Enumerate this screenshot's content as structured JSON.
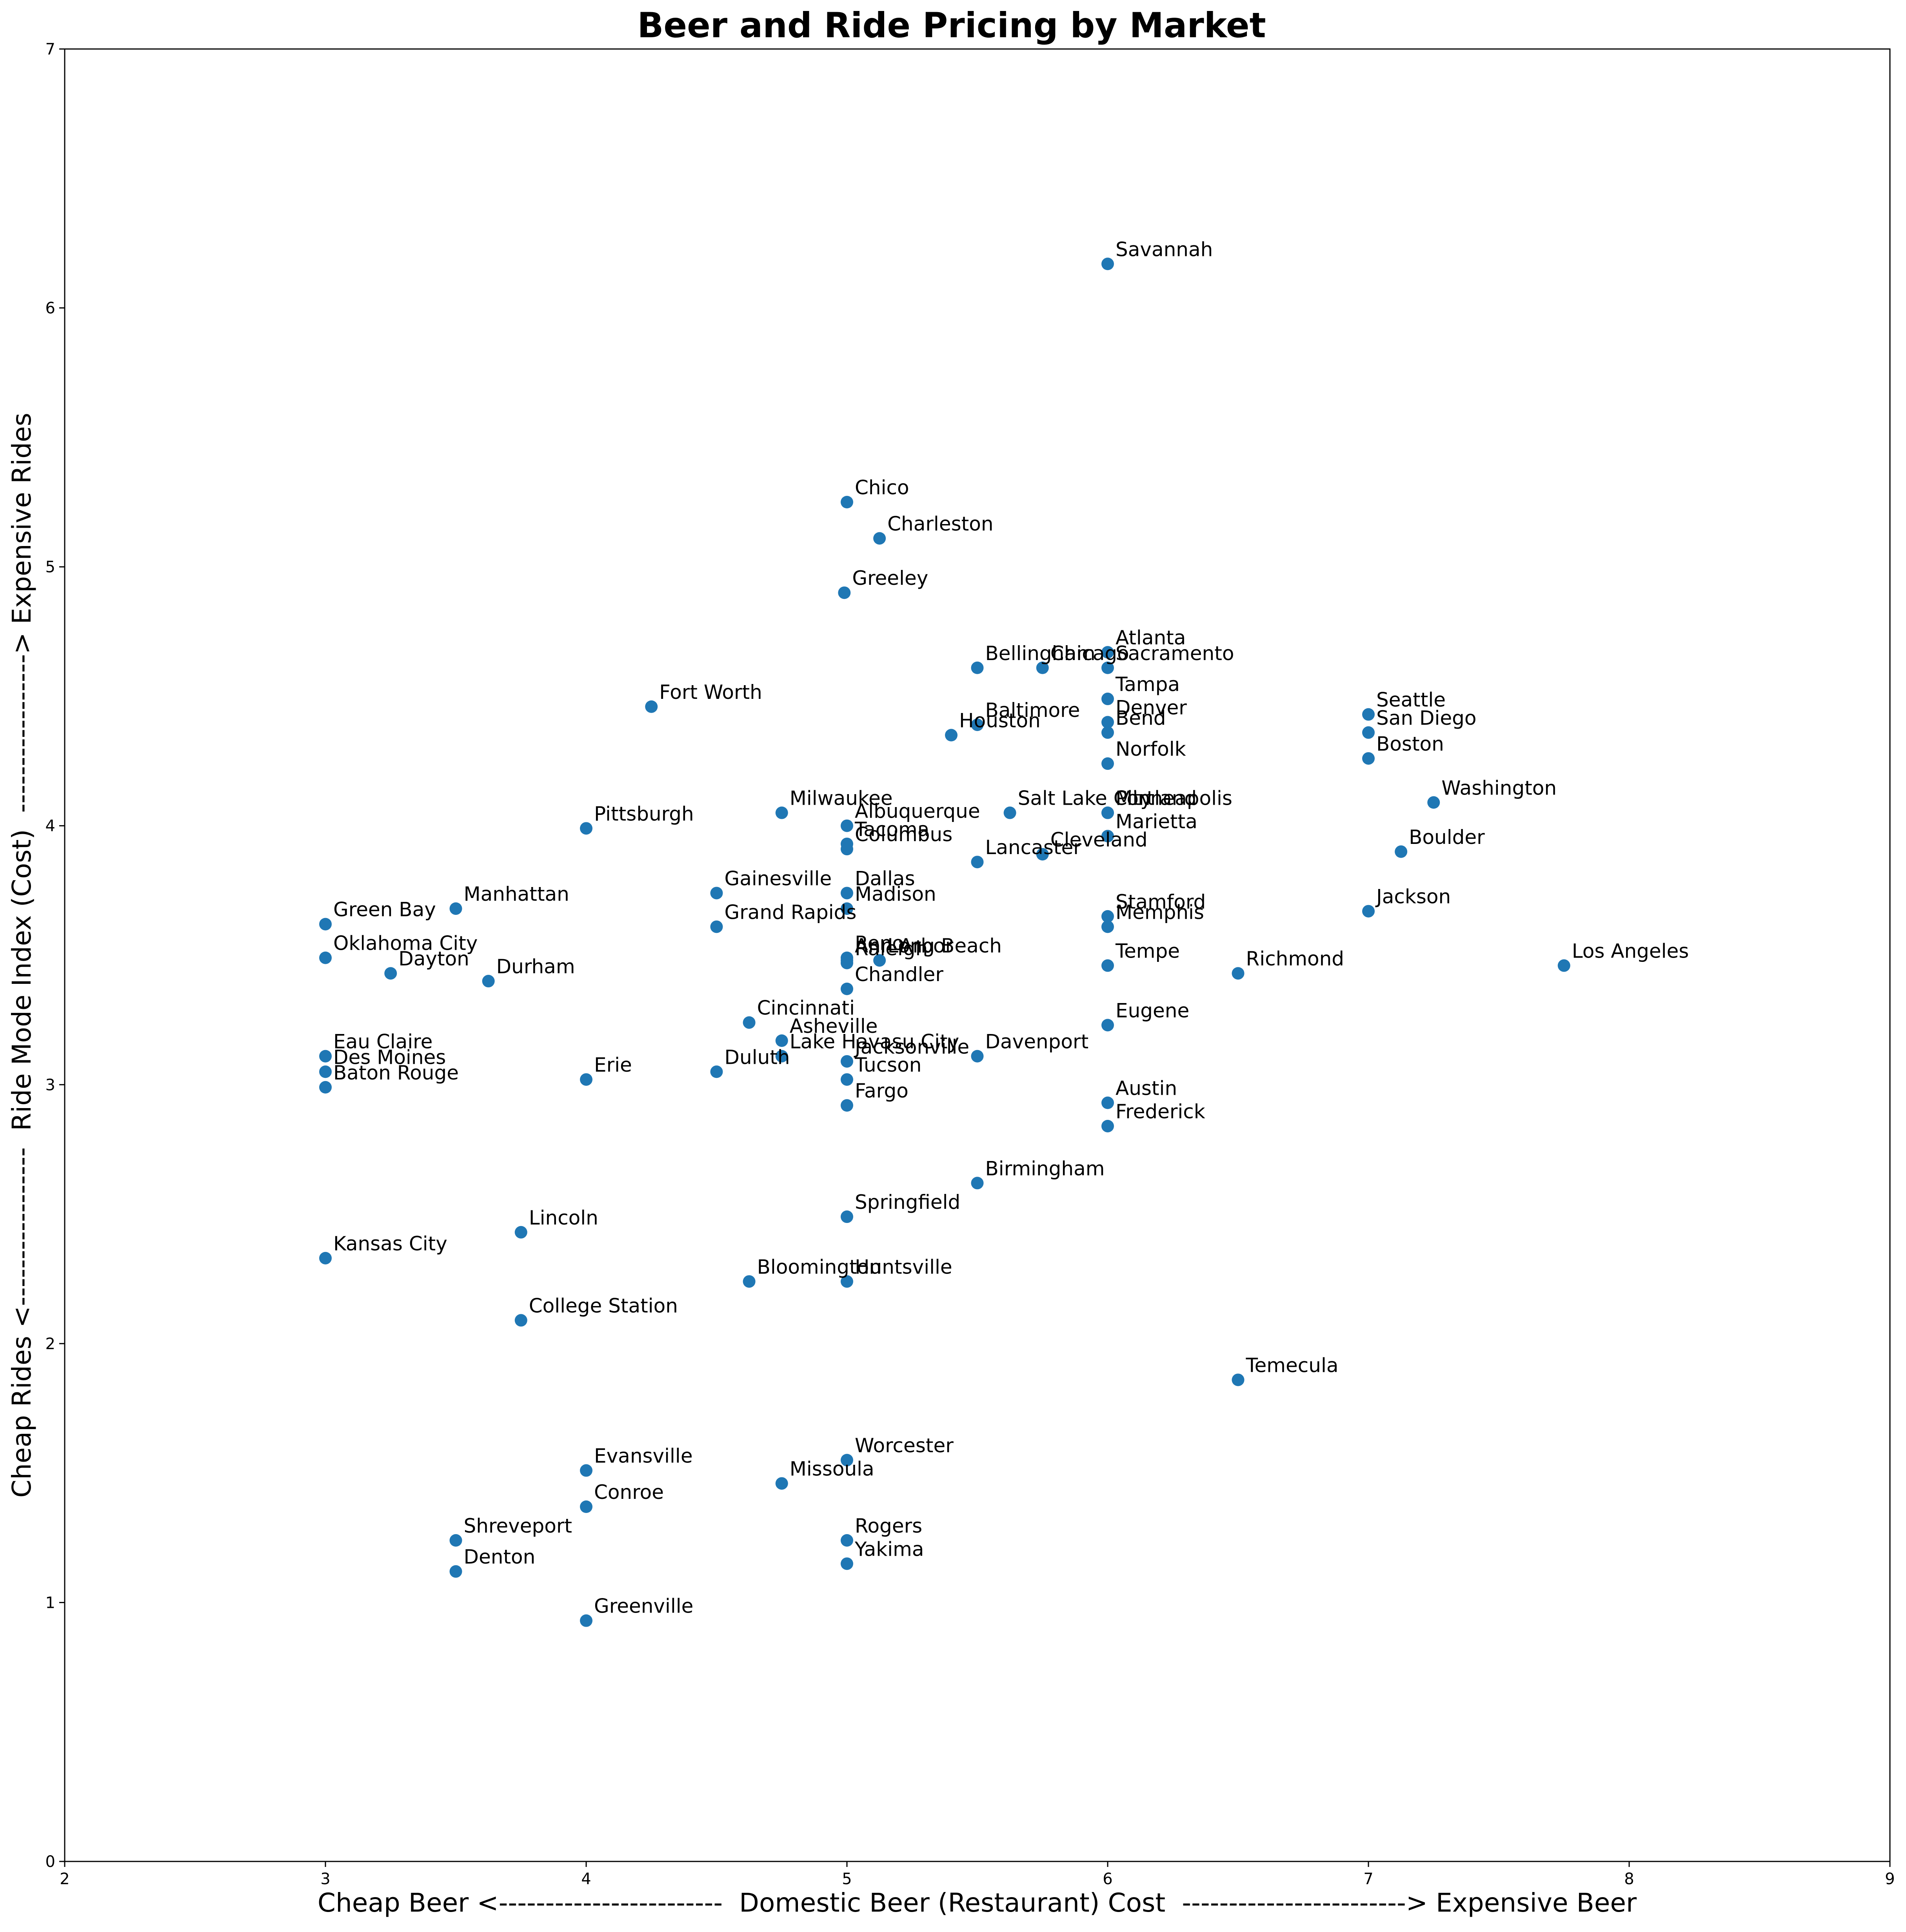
{
  "chart_data": {
    "type": "scatter",
    "title": "Beer and Ride Pricing by Market",
    "xlabel": "Cheap Beer <------------------------  Domestic Beer (Restaurant) Cost  ------------------------> Expensive Beer",
    "ylabel": "Cheap Rides <-----------------  Ride Mode Index (Cost)  -----------------> Expensive Rides",
    "xlim": [
      2,
      9
    ],
    "ylim": [
      0,
      7
    ],
    "xticks": [
      "2",
      "3",
      "4",
      "5",
      "6",
      "7",
      "8",
      "9"
    ],
    "yticks": [
      "0",
      "1",
      "2",
      "3",
      "4",
      "5",
      "6",
      "7"
    ],
    "grid": false,
    "color": "#1f77b4",
    "points": [
      {
        "label": "Savannah",
        "x": 6.0,
        "y": 6.17
      },
      {
        "label": "Chico",
        "x": 5.0,
        "y": 5.25
      },
      {
        "label": "Charleston",
        "x": 5.125,
        "y": 5.11
      },
      {
        "label": "Greeley",
        "x": 4.99,
        "y": 4.9
      },
      {
        "label": "Atlanta",
        "x": 6.0,
        "y": 4.67
      },
      {
        "label": "Chicago",
        "x": 5.75,
        "y": 4.61
      },
      {
        "label": "Sacramento",
        "x": 6.0,
        "y": 4.61
      },
      {
        "label": "Bellingham",
        "x": 5.5,
        "y": 4.61
      },
      {
        "label": "Tampa",
        "x": 6.0,
        "y": 4.49
      },
      {
        "label": "Fort Worth",
        "x": 4.25,
        "y": 4.46
      },
      {
        "label": "Seattle",
        "x": 7.0,
        "y": 4.43
      },
      {
        "label": "Denver",
        "x": 6.0,
        "y": 4.4
      },
      {
        "label": "Baltimore",
        "x": 5.5,
        "y": 4.39
      },
      {
        "label": "Bend",
        "x": 6.0,
        "y": 4.36
      },
      {
        "label": "San Diego",
        "x": 7.0,
        "y": 4.36
      },
      {
        "label": "Houston",
        "x": 5.4,
        "y": 4.35
      },
      {
        "label": "Boston",
        "x": 7.0,
        "y": 4.26
      },
      {
        "label": "Norfolk",
        "x": 6.0,
        "y": 4.24
      },
      {
        "label": "Washington",
        "x": 7.25,
        "y": 4.09
      },
      {
        "label": "Milwaukee",
        "x": 4.75,
        "y": 4.05
      },
      {
        "label": "Salt Lake City",
        "x": 5.625,
        "y": 4.05
      },
      {
        "label": "Portland",
        "x": 6.0,
        "y": 4.05
      },
      {
        "label": "Minneapolis",
        "x": 6.0,
        "y": 4.05
      },
      {
        "label": "Albuquerque",
        "x": 5.0,
        "y": 4.0
      },
      {
        "label": "Pittsburgh",
        "x": 4.0,
        "y": 3.99
      },
      {
        "label": "Marietta",
        "x": 6.0,
        "y": 3.96
      },
      {
        "label": "Tacoma",
        "x": 5.0,
        "y": 3.93
      },
      {
        "label": "Columbus",
        "x": 5.0,
        "y": 3.91
      },
      {
        "label": "Boulder",
        "x": 7.125,
        "y": 3.9
      },
      {
        "label": "Cleveland",
        "x": 5.75,
        "y": 3.89
      },
      {
        "label": "Lancaster",
        "x": 5.5,
        "y": 3.86
      },
      {
        "label": "Dallas",
        "x": 5.0,
        "y": 3.74
      },
      {
        "label": "Gainesville",
        "x": 4.5,
        "y": 3.74
      },
      {
        "label": "Manhattan",
        "x": 3.5,
        "y": 3.68
      },
      {
        "label": "Madison",
        "x": 5.0,
        "y": 3.68
      },
      {
        "label": "Jackson",
        "x": 7.0,
        "y": 3.67
      },
      {
        "label": "Stamford",
        "x": 6.0,
        "y": 3.65
      },
      {
        "label": "Green Bay",
        "x": 3.0,
        "y": 3.62
      },
      {
        "label": "Grand Rapids",
        "x": 4.5,
        "y": 3.61
      },
      {
        "label": "Memphis",
        "x": 6.0,
        "y": 3.61
      },
      {
        "label": "Oklahoma City",
        "x": 3.0,
        "y": 3.49
      },
      {
        "label": "Reno",
        "x": 5.0,
        "y": 3.49
      },
      {
        "label": "Raleigh",
        "x": 5.0,
        "y": 3.47
      },
      {
        "label": "Ann Arbor",
        "x": 5.0,
        "y": 3.48
      },
      {
        "label": "Long Beach",
        "x": 5.125,
        "y": 3.48
      },
      {
        "label": "Tempe",
        "x": 6.0,
        "y": 3.46
      },
      {
        "label": "Los Angeles",
        "x": 7.75,
        "y": 3.46
      },
      {
        "label": "Dayton",
        "x": 3.25,
        "y": 3.43
      },
      {
        "label": "Richmond",
        "x": 6.5,
        "y": 3.43
      },
      {
        "label": "Durham",
        "x": 3.625,
        "y": 3.4
      },
      {
        "label": "Chandler",
        "x": 5.0,
        "y": 3.37
      },
      {
        "label": "Cincinnati",
        "x": 4.625,
        "y": 3.24
      },
      {
        "label": "Eugene",
        "x": 6.0,
        "y": 3.23
      },
      {
        "label": "Asheville",
        "x": 4.75,
        "y": 3.17
      },
      {
        "label": "Eau Claire",
        "x": 3.0,
        "y": 3.11
      },
      {
        "label": "Lake Havasu City",
        "x": 4.75,
        "y": 3.11
      },
      {
        "label": "Davenport",
        "x": 5.5,
        "y": 3.11
      },
      {
        "label": "Jacksonville",
        "x": 5.0,
        "y": 3.09
      },
      {
        "label": "Des Moines",
        "x": 3.0,
        "y": 3.05
      },
      {
        "label": "Duluth",
        "x": 4.5,
        "y": 3.05
      },
      {
        "label": "Erie",
        "x": 4.0,
        "y": 3.02
      },
      {
        "label": "Tucson",
        "x": 5.0,
        "y": 3.02
      },
      {
        "label": "Baton Rouge",
        "x": 3.0,
        "y": 2.99
      },
      {
        "label": "Austin",
        "x": 6.0,
        "y": 2.93
      },
      {
        "label": "Fargo",
        "x": 5.0,
        "y": 2.92
      },
      {
        "label": "Frederick",
        "x": 6.0,
        "y": 2.84
      },
      {
        "label": "Birmingham",
        "x": 5.5,
        "y": 2.62
      },
      {
        "label": "Springfield",
        "x": 5.0,
        "y": 2.49
      },
      {
        "label": "Lincoln",
        "x": 3.75,
        "y": 2.43
      },
      {
        "label": "Kansas City",
        "x": 3.0,
        "y": 2.33
      },
      {
        "label": "Bloomington",
        "x": 4.625,
        "y": 2.24
      },
      {
        "label": "Huntsville",
        "x": 5.0,
        "y": 2.24
      },
      {
        "label": "College Station",
        "x": 3.75,
        "y": 2.09
      },
      {
        "label": "Temecula",
        "x": 6.5,
        "y": 1.86
      },
      {
        "label": "Worcester",
        "x": 5.0,
        "y": 1.55
      },
      {
        "label": "Evansville",
        "x": 4.0,
        "y": 1.51
      },
      {
        "label": "Missoula",
        "x": 4.75,
        "y": 1.46
      },
      {
        "label": "Conroe",
        "x": 4.0,
        "y": 1.37
      },
      {
        "label": "Shreveport",
        "x": 3.5,
        "y": 1.24
      },
      {
        "label": "Rogers",
        "x": 5.0,
        "y": 1.24
      },
      {
        "label": "Yakima",
        "x": 5.0,
        "y": 1.15
      },
      {
        "label": "Denton",
        "x": 3.5,
        "y": 1.12
      },
      {
        "label": "Greenville",
        "x": 4.0,
        "y": 0.93
      }
    ]
  }
}
